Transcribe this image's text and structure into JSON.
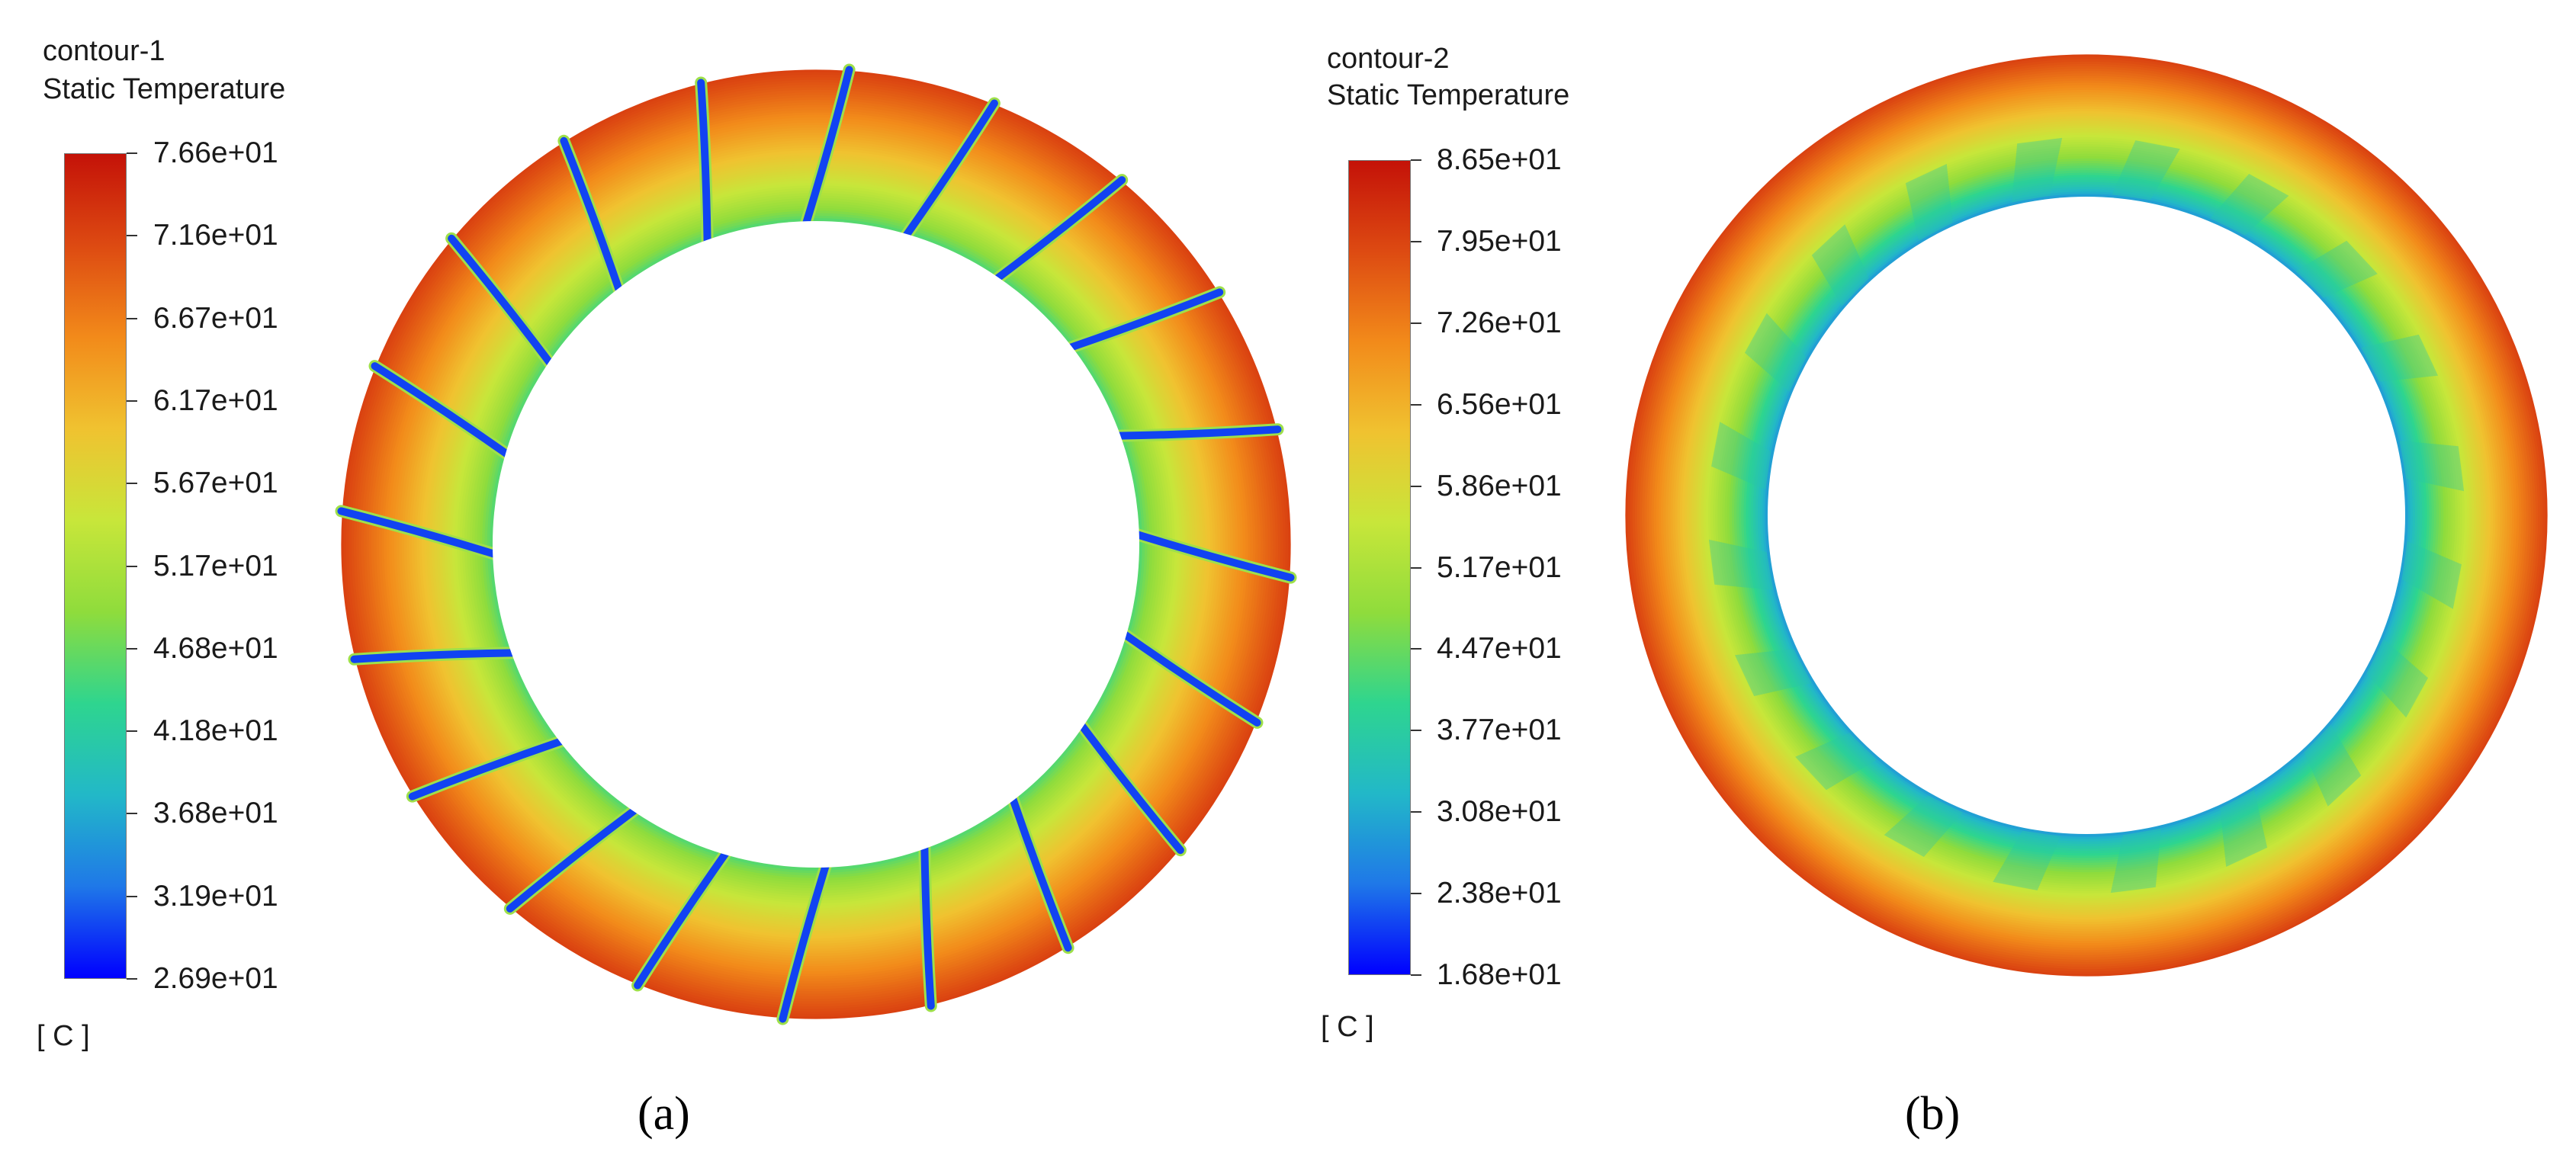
{
  "chart_data": [
    {
      "type": "heatmap",
      "subplot_label": "a",
      "contour_name": "contour-1",
      "quantity": "Static Temperature",
      "unit": "[ C ]",
      "colorbar": {
        "min": 26.9,
        "max": 76.6,
        "tick_labels": [
          "7.66e+01",
          "7.16e+01",
          "6.67e+01",
          "6.17e+01",
          "5.67e+01",
          "5.17e+01",
          "4.68e+01",
          "4.18e+01",
          "3.68e+01",
          "3.19e+01",
          "2.69e+01"
        ],
        "colormap": [
          "#0000ff",
          "#1f78e8",
          "#22b8c8",
          "#2ed58f",
          "#8fdc3c",
          "#c8e63a",
          "#f0c230",
          "#f28a1a",
          "#dd4a12",
          "#c41208"
        ]
      },
      "field": {
        "geometry": "annulus",
        "blade_count": 20,
        "inner_ring_temperature": 45.0,
        "outer_ring_temperature": 72.0,
        "blade_temperature": 30.0
      }
    },
    {
      "type": "heatmap",
      "subplot_label": "b",
      "contour_name": "contour-2",
      "quantity": "Static Temperature",
      "unit": "[ C ]",
      "colorbar": {
        "min": 16.8,
        "max": 86.5,
        "tick_labels": [
          "8.65e+01",
          "7.95e+01",
          "7.26e+01",
          "6.56e+01",
          "5.86e+01",
          "5.17e+01",
          "4.47e+01",
          "3.77e+01",
          "3.08e+01",
          "2.38e+01",
          "1.68e+01"
        ],
        "colormap": [
          "#0000ff",
          "#1f78e8",
          "#22b8c8",
          "#2ed58f",
          "#8fdc3c",
          "#c8e63a",
          "#f0c230",
          "#f28a1a",
          "#dd4a12",
          "#c41208"
        ]
      },
      "field": {
        "geometry": "annulus",
        "blade_count": 20,
        "inner_ring_temperature": 28.0,
        "outer_ring_temperature": 80.0
      }
    }
  ],
  "captions": {
    "a": "(a)",
    "b": "(b)"
  }
}
